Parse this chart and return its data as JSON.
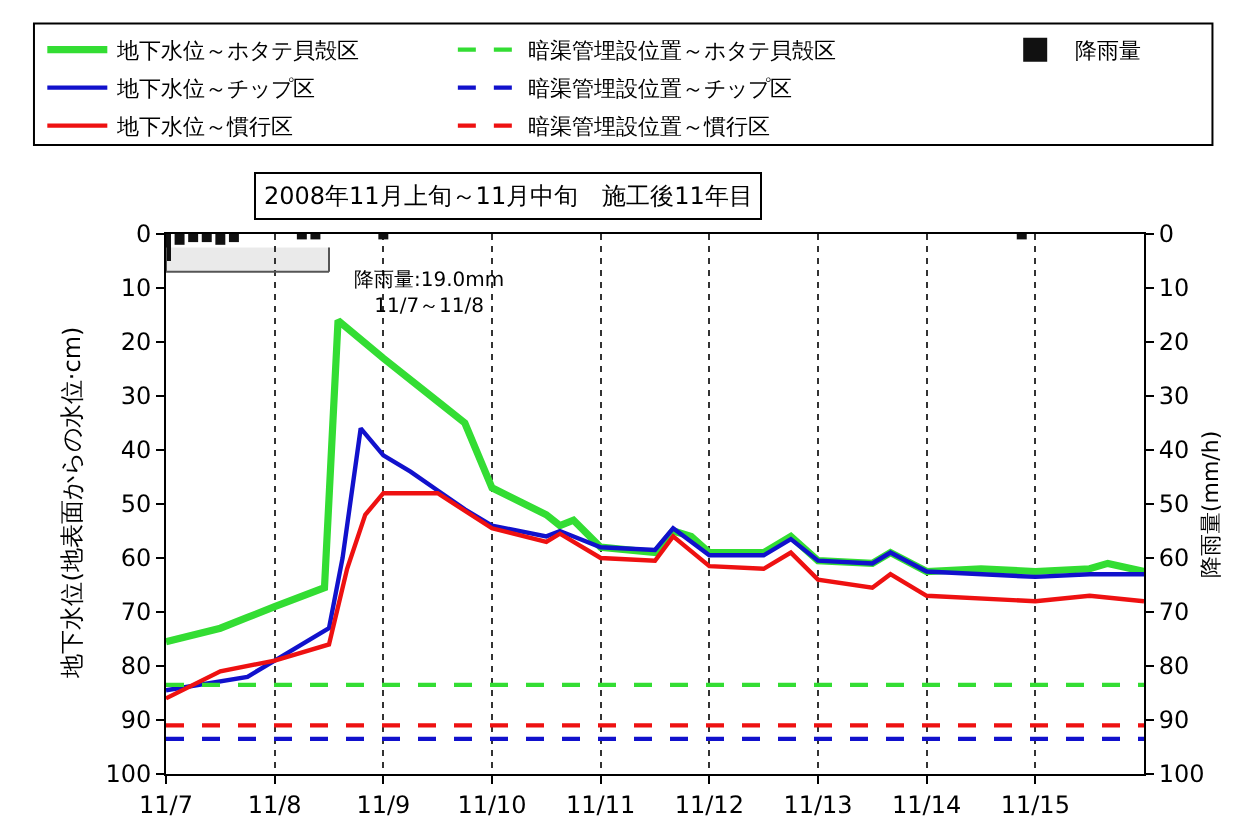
{
  "chart_data": {
    "type": "line",
    "title": "2008年11月上旬～11月中旬　施工後11年目",
    "ylabel": "地下水位(地表面からの水位·cm)",
    "y2label": "降雨量(mm/h)",
    "bands": [
      {
        "axis": "x",
        "from": "2008-11-07T00:00",
        "to": "2008-11-08T12:00",
        "label": "降雨量:19.0mm\n11/7～11/8",
        "color": "#555555"
      }
    ],
    "xlim": [
      "2008-11-07T00:00",
      "2008-11-16T00:00"
    ],
    "xticks": [
      {
        "value": "2008-11-07",
        "label": "11/7"
      },
      {
        "value": "2008-11-08",
        "label": "11/8"
      },
      {
        "value": "2008-11-09",
        "label": "11/9"
      },
      {
        "value": "2008-11-10",
        "label": "11/10"
      },
      {
        "value": "2008-11-11",
        "label": "11/11"
      },
      {
        "value": "2008-11-12",
        "label": "11/12"
      },
      {
        "value": "2008-11-13",
        "label": "11/13"
      },
      {
        "value": "2008-11-14",
        "label": "11/14"
      },
      {
        "value": "2008-11-15",
        "label": "11/15"
      }
    ],
    "ylim": [
      100,
      0
    ],
    "yticks": [
      0,
      10,
      20,
      30,
      40,
      50,
      60,
      70,
      80,
      90,
      100
    ],
    "y2lim": [
      100,
      0
    ],
    "y2ticks": [
      0,
      10,
      20,
      30,
      40,
      50,
      60,
      70,
      80,
      90,
      100
    ],
    "grid": "x",
    "legend": "top",
    "series": [
      {
        "name": "地下水位～ホタテ貝殻区",
        "color": "#33dd33",
        "line_style": "solid",
        "x": [
          "2008-11-07T00:00",
          "2008-11-07T12:00",
          "2008-11-07T18:00",
          "2008-11-08T00:00",
          "2008-11-08T11:00",
          "2008-11-08T14:00",
          "2008-11-09T00:00",
          "2008-11-09T12:00",
          "2008-11-09T18:00",
          "2008-11-10T00:00",
          "2008-11-10T12:00",
          "2008-11-10T15:00",
          "2008-11-10T18:00",
          "2008-11-11T00:00",
          "2008-11-11T12:00",
          "2008-11-11T16:00",
          "2008-11-11T20:00",
          "2008-11-12T00:00",
          "2008-11-12T12:00",
          "2008-11-12T18:00",
          "2008-11-13T00:00",
          "2008-11-13T12:00",
          "2008-11-13T16:00",
          "2008-11-14T00:00",
          "2008-11-14T12:00",
          "2008-11-15T00:00",
          "2008-11-15T12:00",
          "2008-11-15T16:00",
          "2008-11-16T00:00"
        ],
        "values": [
          75.5,
          73,
          71,
          69,
          65.5,
          16,
          23,
          31,
          35,
          47,
          52,
          54,
          53,
          58,
          59,
          55,
          56,
          59,
          59,
          56,
          60.5,
          61,
          59,
          62.5,
          62,
          62.5,
          62,
          61,
          62.5
        ]
      },
      {
        "name": "地下水位～チップ区",
        "color": "#1111cc",
        "line_style": "solid",
        "x": [
          "2008-11-07T00:00",
          "2008-11-07T18:00",
          "2008-11-08T00:00",
          "2008-11-08T12:00",
          "2008-11-08T15:00",
          "2008-11-08T19:00",
          "2008-11-09T00:00",
          "2008-11-09T06:00",
          "2008-11-09T12:00",
          "2008-11-09T18:00",
          "2008-11-10T00:00",
          "2008-11-10T12:00",
          "2008-11-10T15:00",
          "2008-11-11T00:00",
          "2008-11-11T12:00",
          "2008-11-11T16:00",
          "2008-11-12T00:00",
          "2008-11-12T12:00",
          "2008-11-12T18:00",
          "2008-11-13T00:00",
          "2008-11-13T12:00",
          "2008-11-13T16:00",
          "2008-11-14T00:00",
          "2008-11-15T00:00",
          "2008-11-15T12:00",
          "2008-11-16T00:00"
        ],
        "values": [
          84.5,
          82,
          79,
          73,
          60,
          36,
          41,
          44,
          47.5,
          51,
          54,
          56,
          55,
          58,
          58.5,
          54.5,
          59.5,
          59.5,
          56.5,
          60.5,
          61,
          59,
          62.5,
          63.5,
          63,
          63
        ]
      },
      {
        "name": "地下水位～慣行区",
        "color": "#ee1111",
        "line_style": "solid",
        "x": [
          "2008-11-07T00:00",
          "2008-11-07T12:00",
          "2008-11-08T00:00",
          "2008-11-08T12:00",
          "2008-11-08T16:00",
          "2008-11-08T20:00",
          "2008-11-09T00:00",
          "2008-11-09T12:00",
          "2008-11-10T00:00",
          "2008-11-10T12:00",
          "2008-11-10T15:00",
          "2008-11-11T00:00",
          "2008-11-11T12:00",
          "2008-11-11T16:00",
          "2008-11-12T00:00",
          "2008-11-12T12:00",
          "2008-11-12T18:00",
          "2008-11-13T00:00",
          "2008-11-13T12:00",
          "2008-11-13T16:00",
          "2008-11-14T00:00",
          "2008-11-15T00:00",
          "2008-11-15T12:00",
          "2008-11-16T00:00"
        ],
        "values": [
          86,
          81,
          79,
          76,
          62,
          52,
          48,
          48,
          54.5,
          57,
          55.5,
          60,
          60.5,
          56,
          61.5,
          62,
          59,
          64,
          65.5,
          63,
          67,
          68,
          67,
          68
        ]
      },
      {
        "name": "暗渠管埋設位置～ホタテ貝殻区",
        "color": "#33dd33",
        "line_style": "dashed",
        "x": [
          "2008-11-07T00:00",
          "2008-11-16T00:00"
        ],
        "values": [
          83.5,
          83.5
        ]
      },
      {
        "name": "暗渠管埋設位置～チップ区",
        "color": "#1111cc",
        "line_style": "dashed",
        "x": [
          "2008-11-07T00:00",
          "2008-11-16T00:00"
        ],
        "values": [
          93.5,
          93.5
        ]
      },
      {
        "name": "暗渠管埋設位置～慣行区",
        "color": "#ee1111",
        "line_style": "dashed",
        "x": [
          "2008-11-07T00:00",
          "2008-11-16T00:00"
        ],
        "values": [
          91,
          91
        ]
      },
      {
        "name": "降雨量",
        "color": "#111111",
        "type": "bar",
        "axis": "y2",
        "x": [
          "2008-11-07T00:00",
          "2008-11-07T03:00",
          "2008-11-07T06:00",
          "2008-11-07T09:00",
          "2008-11-07T12:00",
          "2008-11-07T15:00",
          "2008-11-08T06:00",
          "2008-11-08T09:00",
          "2008-11-09T00:00",
          "2008-11-14T21:00"
        ],
        "values": [
          5,
          2,
          1.5,
          1.5,
          2,
          1.5,
          1,
          1,
          1,
          1
        ]
      }
    ]
  }
}
